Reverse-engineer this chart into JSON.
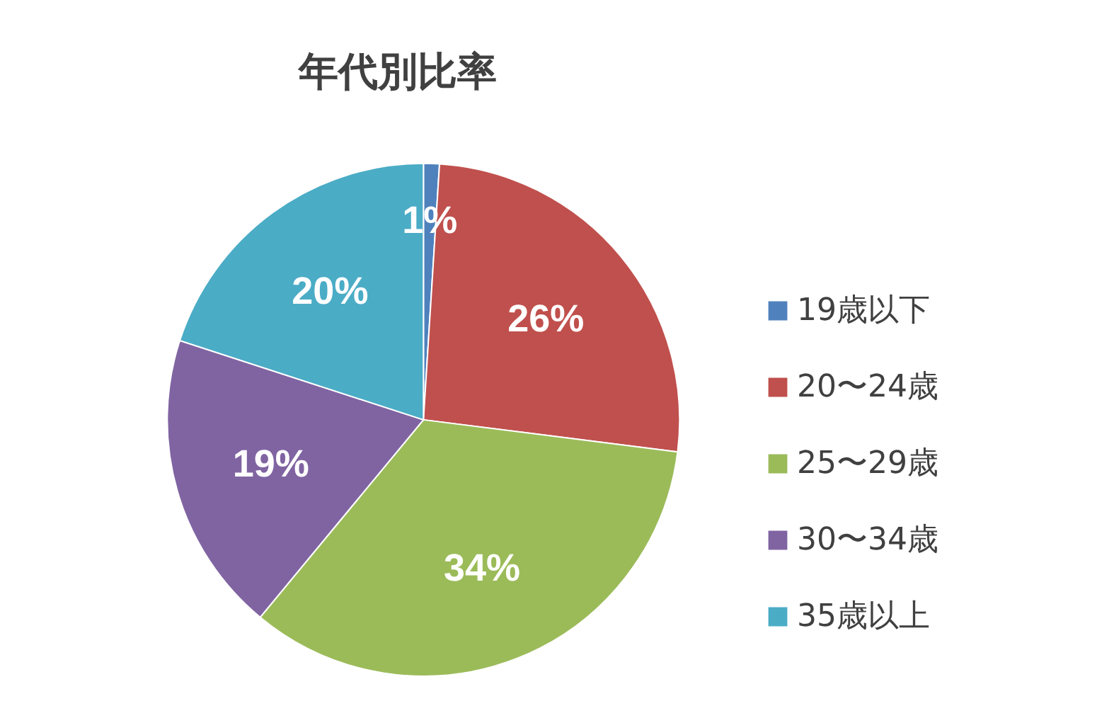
{
  "chart_data": {
    "type": "pie",
    "title": "年代別比率",
    "categories": [
      "19歳以下",
      "20〜24歳",
      "25〜29歳",
      "30〜34歳",
      "35歳以上"
    ],
    "values": [
      1,
      26,
      34,
      19,
      20
    ],
    "colors": [
      "#4f81bd",
      "#c0504d",
      "#9bbb59",
      "#8064a2",
      "#4bacc6"
    ],
    "value_labels": [
      "1%",
      "26%",
      "34%",
      "19%",
      "20%"
    ],
    "legend": "right"
  }
}
